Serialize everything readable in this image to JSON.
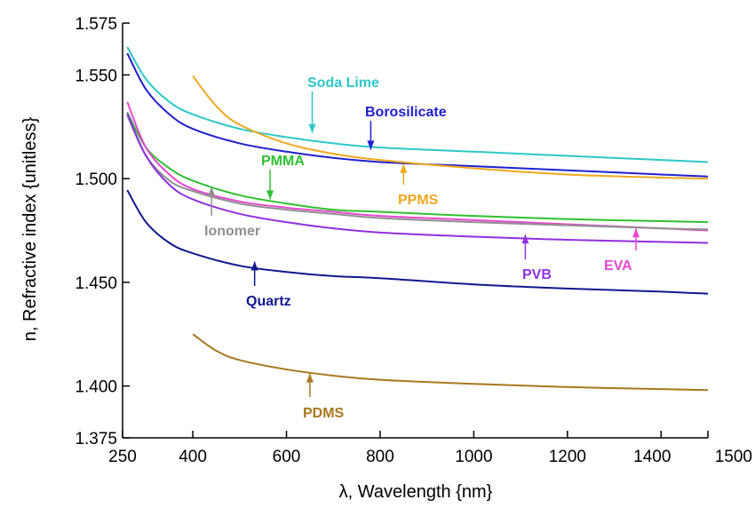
{
  "chart_data": {
    "type": "line",
    "xlabel": "λ, Wavelength {nm}",
    "ylabel": "n, Refractive index {unitless}",
    "xlim": [
      250,
      1500
    ],
    "ylim": [
      1.375,
      1.575
    ],
    "xticks": [
      250,
      400,
      600,
      800,
      1000,
      1200,
      1400,
      1500
    ],
    "yticks": [
      1.375,
      1.4,
      1.45,
      1.5,
      1.55,
      1.575
    ],
    "xtick_labels": [
      "250",
      "400",
      "600",
      "800",
      "1000",
      "1200",
      "1400",
      "1500"
    ],
    "ytick_labels": [
      "1.375",
      "1.400",
      "1.450",
      "1.500",
      "1.550",
      "1.575"
    ],
    "grid": false,
    "series": [
      {
        "name": "Soda Lime",
        "color": "#2ec8c8",
        "x": [
          260,
          300,
          350,
          400,
          500,
          600,
          700,
          800,
          1000,
          1200,
          1400,
          1500
        ],
        "y": [
          1.5635,
          1.548,
          1.537,
          1.531,
          1.524,
          1.52,
          1.517,
          1.515,
          1.513,
          1.511,
          1.509,
          1.508
        ],
        "annotation": {
          "x": 655,
          "y": 1.522
        }
      },
      {
        "name": "Borosilicate",
        "color": "#2020d0",
        "x": [
          260,
          300,
          350,
          400,
          500,
          600,
          700,
          800,
          1000,
          1200,
          1400,
          1500
        ],
        "y": [
          1.5605,
          1.543,
          1.531,
          1.524,
          1.517,
          1.513,
          1.51,
          1.508,
          1.506,
          1.504,
          1.502,
          1.501
        ],
        "annotation": {
          "x": 780,
          "y": 1.514
        }
      },
      {
        "name": "PPMS",
        "color": "#f0a820",
        "x": [
          400,
          450,
          500,
          600,
          700,
          800,
          1000,
          1200,
          1400,
          1500
        ],
        "y": [
          1.5495,
          1.535,
          1.526,
          1.517,
          1.512,
          1.509,
          1.505,
          1.502,
          1.5005,
          1.5
        ],
        "annotation": {
          "x": 850,
          "y": 1.507
        }
      },
      {
        "name": "PMMA",
        "color": "#30c030",
        "x": [
          260,
          300,
          350,
          400,
          500,
          600,
          700,
          800,
          1000,
          1200,
          1400,
          1500
        ],
        "y": [
          1.532,
          1.515,
          1.505,
          1.499,
          1.492,
          1.488,
          1.485,
          1.484,
          1.482,
          1.4805,
          1.4795,
          1.479
        ],
        "annotation": {
          "x": 565,
          "y": 1.49
        }
      },
      {
        "name": "EVA",
        "color": "#e848d0",
        "x": [
          260,
          300,
          350,
          400,
          500,
          600,
          700,
          800,
          1000,
          1200,
          1400,
          1500
        ],
        "y": [
          1.537,
          1.515,
          1.502,
          1.495,
          1.489,
          1.486,
          1.484,
          1.482,
          1.48,
          1.478,
          1.476,
          1.475
        ],
        "annotation": {
          "x": 1350,
          "y": 1.476
        }
      },
      {
        "name": "Ionomer",
        "color": "#909090",
        "x": [
          260,
          300,
          350,
          400,
          500,
          600,
          700,
          800,
          1000,
          1200,
          1400,
          1500
        ],
        "y": [
          1.5305,
          1.511,
          1.499,
          1.494,
          1.488,
          1.485,
          1.483,
          1.481,
          1.479,
          1.4775,
          1.476,
          1.4755
        ],
        "annotation": {
          "x": 440,
          "y": 1.496
        }
      },
      {
        "name": "PVB",
        "color": "#9030e0",
        "x": [
          260,
          300,
          350,
          400,
          500,
          600,
          700,
          800,
          1000,
          1200,
          1400,
          1500
        ],
        "y": [
          1.5315,
          1.511,
          1.497,
          1.49,
          1.483,
          1.479,
          1.476,
          1.474,
          1.472,
          1.4705,
          1.4695,
          1.469
        ],
        "annotation": {
          "x": 1110,
          "y": 1.473
        }
      },
      {
        "name": "Quartz",
        "color": "#101890",
        "x": [
          260,
          300,
          350,
          400,
          500,
          600,
          700,
          800,
          1000,
          1200,
          1400,
          1500
        ],
        "y": [
          1.4945,
          1.479,
          1.469,
          1.464,
          1.458,
          1.455,
          1.453,
          1.452,
          1.449,
          1.447,
          1.4455,
          1.4445
        ],
        "annotation": {
          "x": 532,
          "y": 1.46
        }
      },
      {
        "name": "PDMS",
        "color": "#a87820",
        "x": [
          400,
          450,
          500,
          600,
          700,
          800,
          1000,
          1200,
          1400,
          1500
        ],
        "y": [
          1.425,
          1.417,
          1.4125,
          1.408,
          1.405,
          1.403,
          1.401,
          1.3995,
          1.3985,
          1.398
        ],
        "annotation": {
          "x": 650,
          "y": 1.406
        }
      }
    ]
  }
}
